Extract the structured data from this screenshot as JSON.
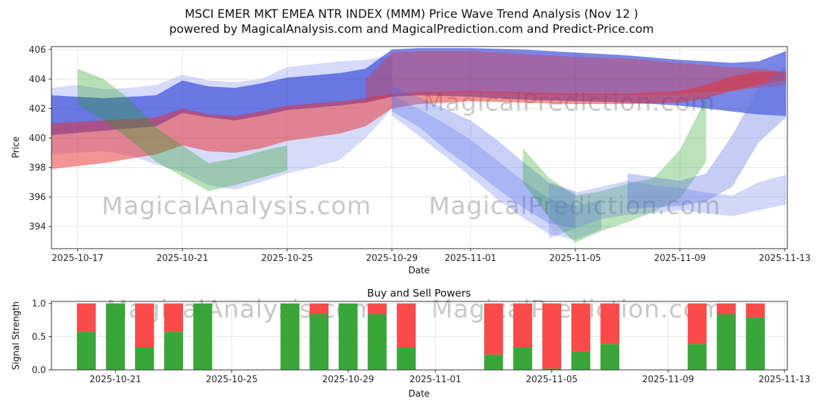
{
  "watermarks": {
    "analysis": "MagicalAnalysis.com",
    "prediction": "MagicalPrediction.com"
  },
  "chart_data": [
    {
      "type": "area",
      "title": "MSCI EMER MKT EMEA NTR INDEX (MMM) Price Wave Trend Analysis (Nov 12 )",
      "subtitle": "powered by MagicalAnalysis.com and MagicalPrediction.com and Predict-Price.com",
      "xlabel": "Date",
      "ylabel": "Price",
      "ylim": [
        392.5,
        406.2
      ],
      "yticks": [
        394,
        396,
        398,
        400,
        402,
        404,
        406
      ],
      "ytick_decimals": 0,
      "day0": "2025-10-16",
      "xlim_days": [
        0,
        28.1
      ],
      "xtick_days": [
        1,
        5,
        9,
        13,
        16,
        20,
        24,
        28
      ],
      "xtick_labels": [
        "2025-10-17",
        "2025-10-21",
        "2025-10-25",
        "2025-10-29",
        "2025-11-01",
        "2025-11-05",
        "2025-11-09",
        "2025-11-13"
      ],
      "grid": true,
      "legend": "none",
      "bands": [
        {
          "name": "light-blue-wide-left",
          "color": "#6b7fe8",
          "opacity": 0.28,
          "x": [
            0,
            1,
            2,
            3,
            4,
            5,
            6,
            7,
            8,
            9,
            10,
            11,
            12,
            13
          ],
          "upper": [
            403.4,
            403.6,
            403.3,
            403.4,
            403.6,
            404.3,
            403.9,
            403.8,
            404.0,
            404.8,
            405.0,
            405.2,
            405.3,
            405.6
          ],
          "lower": [
            398.9,
            399.0,
            399.1,
            398.8,
            398.2,
            397.7,
            396.8,
            396.5,
            397.0,
            397.6,
            398.0,
            398.5,
            400.0,
            402.0
          ]
        },
        {
          "name": "blue-main-band",
          "color": "#2236d6",
          "opacity": 0.6,
          "x": [
            0,
            2,
            4,
            5,
            6,
            7,
            8,
            9,
            11,
            12,
            13,
            14,
            16,
            18,
            20,
            22,
            24,
            25,
            26,
            27,
            28.05
          ],
          "upper": [
            402.9,
            402.7,
            402.9,
            403.9,
            403.5,
            403.4,
            403.7,
            404.1,
            404.4,
            404.7,
            406.0,
            406.1,
            406.1,
            406.0,
            405.8,
            405.6,
            405.3,
            405.2,
            405.1,
            405.2,
            405.9
          ],
          "lower": [
            400.2,
            400.5,
            400.8,
            401.7,
            401.4,
            401.2,
            401.5,
            401.9,
            402.2,
            402.4,
            402.8,
            402.9,
            402.8,
            402.6,
            402.5,
            402.4,
            402.2,
            402.0,
            401.8,
            401.6,
            401.5
          ]
        },
        {
          "name": "red-main-band",
          "color": "#e82c2c",
          "opacity": 0.5,
          "x": [
            0,
            2,
            4,
            5,
            6,
            7,
            8,
            9,
            11,
            12,
            13,
            14,
            16,
            18,
            20,
            22,
            24,
            25,
            26,
            27,
            28.05
          ],
          "upper": [
            401.0,
            401.2,
            401.4,
            402.0,
            401.6,
            401.5,
            401.8,
            402.2,
            402.5,
            402.7,
            403.0,
            403.1,
            403.2,
            403.1,
            403.0,
            403.0,
            403.2,
            403.6,
            404.2,
            404.5,
            404.5
          ],
          "lower": [
            397.9,
            398.3,
            398.9,
            399.5,
            399.1,
            399.0,
            399.3,
            399.8,
            400.3,
            400.8,
            402.0,
            402.3,
            402.5,
            402.4,
            402.3,
            402.3,
            402.4,
            402.7,
            403.2,
            403.6,
            403.9
          ]
        },
        {
          "name": "red-upper-band",
          "color": "#e82c2c",
          "opacity": 0.35,
          "x": [
            12,
            13,
            14,
            16,
            18,
            20,
            22,
            24,
            26,
            27,
            28.05
          ],
          "upper": [
            404.0,
            405.8,
            405.9,
            405.9,
            405.7,
            405.5,
            405.4,
            405.1,
            404.8,
            404.7,
            404.5
          ],
          "lower": [
            402.5,
            402.8,
            403.0,
            403.1,
            403.0,
            402.9,
            402.9,
            403.0,
            403.2,
            403.4,
            403.6
          ]
        },
        {
          "name": "green-left-band",
          "color": "#1e9e1e",
          "opacity": 0.32,
          "x": [
            1,
            2,
            3,
            4,
            5,
            6,
            7,
            8,
            9
          ],
          "upper": [
            404.7,
            404.0,
            402.6,
            400.7,
            399.5,
            398.3,
            398.6,
            399.1,
            399.5
          ],
          "lower": [
            402.3,
            401.2,
            399.9,
            398.4,
            397.4,
            396.4,
            396.8,
            397.3,
            397.8
          ]
        },
        {
          "name": "blue-dive-band-1",
          "color": "#4a63e8",
          "opacity": 0.3,
          "x": [
            13,
            14,
            15,
            16,
            17,
            18,
            19,
            20
          ],
          "upper": [
            403.5,
            402.8,
            402.0,
            401.2,
            399.9,
            398.4,
            397.0,
            396.4
          ],
          "lower": [
            401.8,
            400.8,
            399.3,
            398.0,
            396.6,
            395.3,
            394.2,
            393.9
          ]
        },
        {
          "name": "blue-dive-band-2",
          "color": "#4a63e8",
          "opacity": 0.25,
          "x": [
            13,
            14,
            15,
            16,
            17,
            18,
            19,
            20,
            21
          ],
          "upper": [
            402.9,
            402.0,
            401.0,
            399.9,
            398.5,
            397.1,
            395.9,
            395.4,
            395.8
          ],
          "lower": [
            401.5,
            400.2,
            398.8,
            397.4,
            395.9,
            394.6,
            393.5,
            393.1,
            393.8
          ]
        },
        {
          "name": "green-right-band",
          "color": "#1e9e1e",
          "opacity": 0.3,
          "x": [
            18,
            19,
            20,
            21,
            22,
            23,
            24,
            25
          ],
          "upper": [
            399.3,
            397.3,
            396.1,
            396.4,
            396.9,
            397.3,
            399.2,
            402.7
          ],
          "lower": [
            397.0,
            394.6,
            392.9,
            393.7,
            394.3,
            395.0,
            395.9,
            398.4
          ]
        },
        {
          "name": "light-blue-low-right",
          "color": "#6a7fe8",
          "opacity": 0.3,
          "x": [
            19,
            20,
            21,
            22,
            23,
            24,
            25,
            26,
            27,
            28.05
          ],
          "upper": [
            396.9,
            396.3,
            396.7,
            397.1,
            396.8,
            396.6,
            396.3,
            396.1,
            397.0,
            397.5
          ],
          "lower": [
            393.2,
            393.9,
            394.5,
            394.8,
            394.9,
            395.1,
            394.9,
            394.7,
            395.1,
            395.5
          ]
        },
        {
          "name": "light-blue-rise-right",
          "color": "#5a70e0",
          "opacity": 0.35,
          "x": [
            22,
            24,
            25,
            26,
            27,
            28.05
          ],
          "upper": [
            397.6,
            397.1,
            397.6,
            400.2,
            403.4,
            404.9
          ],
          "lower": [
            395.2,
            395.4,
            395.7,
            396.7,
            399.7,
            401.4
          ]
        }
      ]
    },
    {
      "type": "bar",
      "title": "Buy and Sell Powers",
      "xlabel": "Date",
      "ylabel": "Signal Strength",
      "ylim": [
        0,
        1.031
      ],
      "yticks": [
        0.0,
        0.5,
        1.0
      ],
      "ytick_decimals": 1,
      "day0": "2025-10-16",
      "xlim_days": [
        2.8,
        28.1
      ],
      "xtick_days": [
        5,
        9,
        13,
        16,
        20,
        24,
        28
      ],
      "xtick_labels": [
        "2025-10-21",
        "2025-10-25",
        "2025-10-29",
        "2025-11-01",
        "2025-11-05",
        "2025-11-09",
        "2025-11-13"
      ],
      "grid": true,
      "bar_width_days": 0.65,
      "buy_color": "#3aa63a",
      "sell_color": "#fa4b4b",
      "series_names": [
        "Buy",
        "Sell"
      ],
      "bars": [
        {
          "date": "2025-10-20",
          "buy": 0.57,
          "sell": 0.43
        },
        {
          "date": "2025-10-21",
          "buy": 1.0,
          "sell": 0.0
        },
        {
          "date": "2025-10-22",
          "buy": 0.34,
          "sell": 0.66
        },
        {
          "date": "2025-10-23",
          "buy": 0.57,
          "sell": 0.43
        },
        {
          "date": "2025-10-24",
          "buy": 1.0,
          "sell": 0.0
        },
        {
          "date": "2025-10-27",
          "buy": 1.0,
          "sell": 0.0
        },
        {
          "date": "2025-10-28",
          "buy": 0.84,
          "sell": 0.16
        },
        {
          "date": "2025-10-29",
          "buy": 1.0,
          "sell": 0.0
        },
        {
          "date": "2025-10-30",
          "buy": 0.84,
          "sell": 0.16
        },
        {
          "date": "2025-10-31",
          "buy": 0.34,
          "sell": 0.66
        },
        {
          "date": "2025-11-03",
          "buy": 0.23,
          "sell": 0.77
        },
        {
          "date": "2025-11-04",
          "buy": 0.34,
          "sell": 0.66
        },
        {
          "date": "2025-11-05",
          "buy": 0.02,
          "sell": 0.98
        },
        {
          "date": "2025-11-06",
          "buy": 0.28,
          "sell": 0.72
        },
        {
          "date": "2025-11-07",
          "buy": 0.39,
          "sell": 0.61
        },
        {
          "date": "2025-11-10",
          "buy": 0.39,
          "sell": 0.61
        },
        {
          "date": "2025-11-11",
          "buy": 0.84,
          "sell": 0.16
        },
        {
          "date": "2025-11-12",
          "buy": 0.79,
          "sell": 0.21
        }
      ]
    }
  ]
}
